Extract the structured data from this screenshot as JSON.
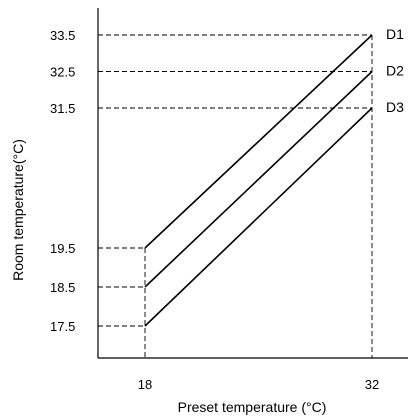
{
  "chart_data": {
    "type": "line",
    "title": "",
    "xlabel": "Preset temperature (°C)",
    "ylabel": "Room temperature(°C)",
    "x_ticks": [
      18,
      32
    ],
    "y_ticks": [
      17.5,
      18.5,
      19.5,
      31.5,
      32.5,
      33.5
    ],
    "y_axis_broken": true,
    "grid": false,
    "reference_lines": "dashed",
    "series": [
      {
        "name": "D1",
        "points": [
          [
            18,
            19.5
          ],
          [
            32,
            33.5
          ]
        ]
      },
      {
        "name": "D2",
        "points": [
          [
            18,
            18.5
          ],
          [
            32,
            32.5
          ]
        ]
      },
      {
        "name": "D3",
        "points": [
          [
            18,
            17.5
          ],
          [
            32,
            31.5
          ]
        ]
      }
    ]
  }
}
